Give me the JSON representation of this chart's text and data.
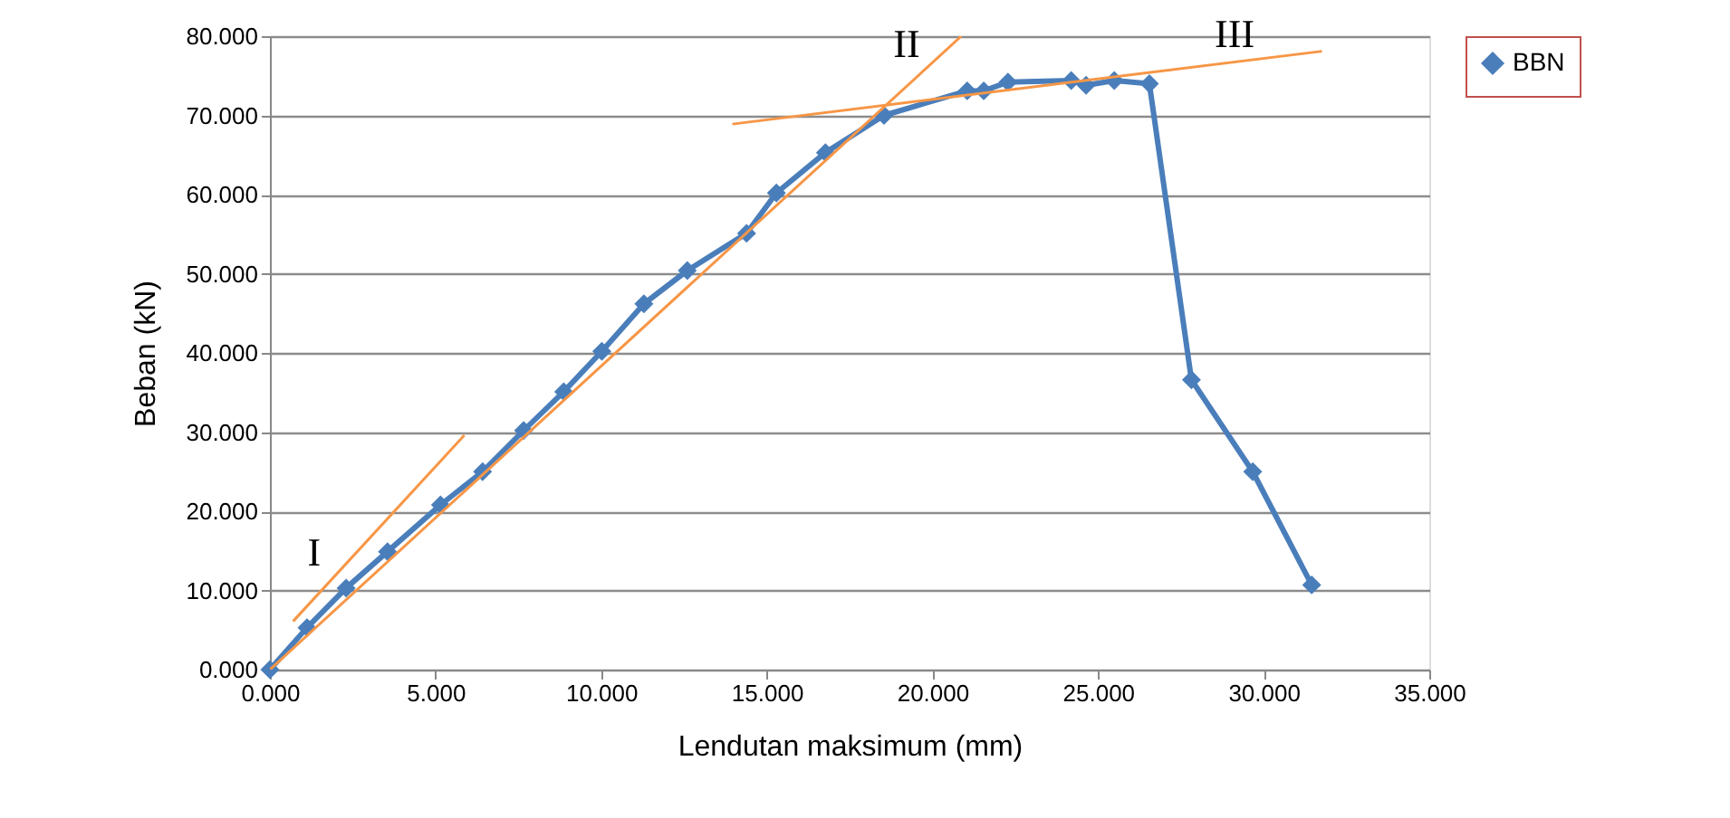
{
  "chart_data": {
    "type": "line",
    "xlabel": "Lendutan maksimum (mm)",
    "ylabel": "Beban (kN)",
    "xlim": [
      0,
      35
    ],
    "xticks": [
      {
        "value": 0,
        "label": "0.000"
      },
      {
        "value": 5,
        "label": "5.000"
      },
      {
        "value": 10,
        "label": "10.000"
      },
      {
        "value": 15,
        "label": "15.000"
      },
      {
        "value": 20,
        "label": "20.000"
      },
      {
        "value": 25,
        "label": "25.000"
      },
      {
        "value": 30,
        "label": "30.000"
      },
      {
        "value": 35,
        "label": "35.000"
      }
    ],
    "ylim": [
      0,
      80
    ],
    "yticks": [
      {
        "value": 0,
        "label": "0.000"
      },
      {
        "value": 10,
        "label": "10.000"
      },
      {
        "value": 20,
        "label": "20.000"
      },
      {
        "value": 30,
        "label": "30.000"
      },
      {
        "value": 40,
        "label": "40.000"
      },
      {
        "value": 50,
        "label": "50.000"
      },
      {
        "value": 60,
        "label": "60.000"
      },
      {
        "value": 70,
        "label": "70.000"
      },
      {
        "value": 80,
        "label": "80.000"
      }
    ],
    "grid": "y",
    "legend": "right",
    "series": [
      {
        "name": "BBN",
        "color": "#4a7ebb",
        "marker": "diamond",
        "line_style": "solid",
        "x": [
          0,
          1.12,
          2.3,
          3.55,
          5.15,
          6.42,
          7.66,
          8.87,
          10.02,
          11.29,
          12.6,
          14.39,
          15.29,
          16.77,
          18.54,
          21.05,
          21.55,
          22.28,
          24.19,
          24.64,
          25.49,
          26.55,
          27.82,
          29.67,
          31.45
        ],
        "values": [
          0,
          5.3,
          10.3,
          14.9,
          20.8,
          25.0,
          30.2,
          35.1,
          40.2,
          46.2,
          50.4,
          55.1,
          60.2,
          65.3,
          70.0,
          73.1,
          73.1,
          74.2,
          74.4,
          73.8,
          74.4,
          74.0,
          36.6,
          25.0,
          10.7
        ]
      },
      {
        "type": "line",
        "color": "#f79646",
        "marker": "none",
        "line_style": "solid",
        "x": [
          0.7,
          5.87
        ],
        "values": [
          6.1,
          29.6
        ]
      },
      {
        "type": "line",
        "color": "#f79646",
        "marker": "none",
        "line_style": "solid",
        "x": [
          0,
          20.87
        ],
        "values": [
          0,
          80
        ]
      },
      {
        "type": "line",
        "color": "#f79646",
        "marker": "none",
        "line_style": "solid",
        "x": [
          13.96,
          31.76
        ],
        "values": [
          68.9,
          78.1
        ]
      }
    ],
    "annotations": [
      {
        "text": "I",
        "x": 1.88,
        "y": 11.5
      },
      {
        "text": "II",
        "x": 19.77,
        "y": 75.8
      },
      {
        "text": "III",
        "x": 29.67,
        "y": 77.0
      }
    ]
  }
}
